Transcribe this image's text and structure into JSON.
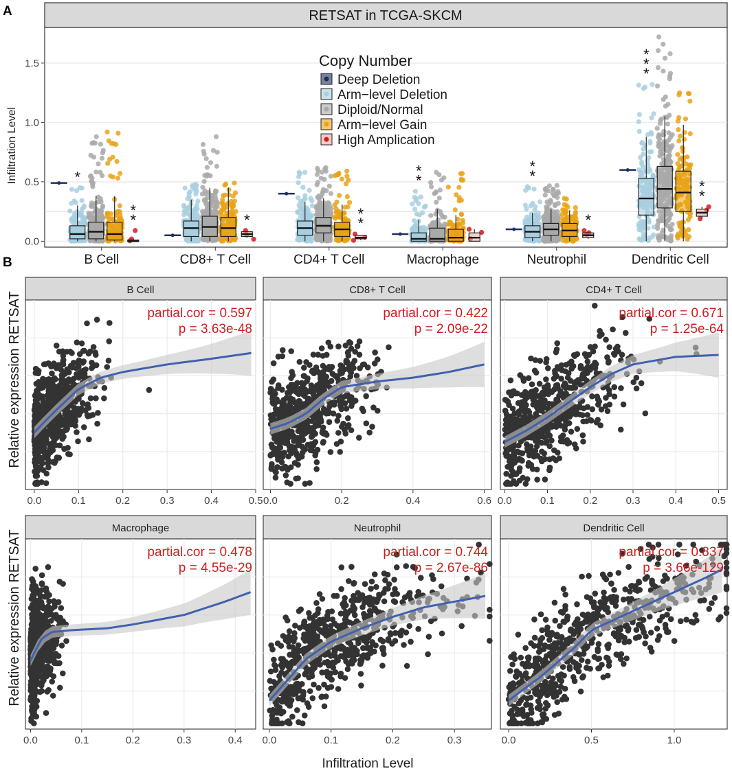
{
  "figure": {
    "panel_a_label": "A",
    "panel_b_label": "B"
  },
  "colors": {
    "deep_deletion": "#1f2f5c",
    "arm_deletion": "#a8cfe0",
    "diploid": "#a9a9a9",
    "arm_gain": "#e8a317",
    "high_amp": "#d7191c",
    "high_amp_box": "#f1a9a0",
    "strip_bg": "#d9d9d9",
    "grid": "#ebebeb",
    "points": "#333333",
    "fit_line": "#4060b0",
    "band": "#c8c8c8",
    "stat_text": "#cc1f1f"
  },
  "chart_data": [
    {
      "type": "box",
      "title": "RETSAT in TCGA-SKCM",
      "ylabel": "Infiltration Level",
      "xlabel": "",
      "ylim": [
        -0.05,
        1.8
      ],
      "yticks": [
        0.0,
        0.5,
        1.0,
        1.5
      ],
      "ytick_labels": [
        "0.0",
        "0.5",
        "1.0",
        "1.5"
      ],
      "reference_lines": [
        0.25
      ],
      "legend": {
        "title": "Copy Number",
        "placement": "top-center",
        "entries": [
          "Deep Deletion",
          "Arm−level Deletion",
          "Diploid/Normal",
          "Arm−level Gain",
          "High Amplication"
        ]
      },
      "categories": [
        "B Cell",
        "CD8+ T Cell",
        "CD4+ T Cell",
        "Macrophage",
        "Neutrophil",
        "Dendritic Cell"
      ],
      "groups": [
        {
          "name": "B Cell",
          "significance": [
            "",
            "*",
            "",
            "",
            "**"
          ],
          "max": [
            0.49,
            0.45,
            0.88,
            0.92,
            0.09
          ],
          "boxes": [
            {
              "q1": 0.49,
              "med": 0.49,
              "q3": 0.49,
              "lo": 0.49,
              "hi": 0.49
            },
            {
              "q1": 0.02,
              "med": 0.06,
              "q3": 0.13,
              "lo": 0.0,
              "hi": 0.3
            },
            {
              "q1": 0.02,
              "med": 0.08,
              "q3": 0.16,
              "lo": 0.0,
              "hi": 0.38
            },
            {
              "q1": 0.01,
              "med": 0.06,
              "q3": 0.16,
              "lo": 0.0,
              "hi": 0.38
            },
            {
              "q1": 0.0,
              "med": 0.0,
              "q3": 0.01,
              "lo": 0.0,
              "hi": 0.02
            }
          ]
        },
        {
          "name": "CD8+ T Cell",
          "significance": [
            "",
            "",
            "",
            "",
            "*"
          ],
          "max": [
            0.05,
            0.48,
            0.88,
            0.49,
            0.09
          ],
          "boxes": [
            {
              "q1": 0.05,
              "med": 0.05,
              "q3": 0.05,
              "lo": 0.05,
              "hi": 0.05
            },
            {
              "q1": 0.04,
              "med": 0.11,
              "q3": 0.17,
              "lo": 0.0,
              "hi": 0.35
            },
            {
              "q1": 0.04,
              "med": 0.12,
              "q3": 0.21,
              "lo": 0.0,
              "hi": 0.45
            },
            {
              "q1": 0.04,
              "med": 0.11,
              "q3": 0.2,
              "lo": 0.0,
              "hi": 0.45
            },
            {
              "q1": 0.04,
              "med": 0.06,
              "q3": 0.08,
              "lo": 0.03,
              "hi": 0.08
            }
          ]
        },
        {
          "name": "CD4+ T Cell",
          "significance": [
            "",
            "",
            "",
            "",
            "**"
          ],
          "max": [
            0.4,
            0.58,
            0.62,
            0.59,
            0.06
          ],
          "boxes": [
            {
              "q1": 0.4,
              "med": 0.4,
              "q3": 0.4,
              "lo": 0.4,
              "hi": 0.4
            },
            {
              "q1": 0.05,
              "med": 0.11,
              "q3": 0.17,
              "lo": 0.0,
              "hi": 0.33
            },
            {
              "q1": 0.07,
              "med": 0.13,
              "q3": 0.2,
              "lo": 0.0,
              "hi": 0.36
            },
            {
              "q1": 0.04,
              "med": 0.1,
              "q3": 0.16,
              "lo": 0.0,
              "hi": 0.31
            },
            {
              "q1": 0.02,
              "med": 0.03,
              "q3": 0.05,
              "lo": 0.01,
              "hi": 0.05
            }
          ]
        },
        {
          "name": "Macrophage",
          "significance": [
            "",
            "**",
            "",
            "",
            ""
          ],
          "max": [
            0.06,
            0.42,
            0.58,
            0.57,
            0.1
          ],
          "boxes": [
            {
              "q1": 0.06,
              "med": 0.06,
              "q3": 0.06,
              "lo": 0.06,
              "hi": 0.06
            },
            {
              "q1": 0.0,
              "med": 0.02,
              "q3": 0.07,
              "lo": 0.0,
              "hi": 0.18
            },
            {
              "q1": 0.0,
              "med": 0.02,
              "q3": 0.11,
              "lo": 0.0,
              "hi": 0.27
            },
            {
              "q1": 0.0,
              "med": 0.03,
              "q3": 0.1,
              "lo": 0.0,
              "hi": 0.22
            },
            {
              "q1": 0.0,
              "med": 0.03,
              "q3": 0.07,
              "lo": 0.0,
              "hi": 0.1
            }
          ]
        },
        {
          "name": "Neutrophil",
          "significance": [
            "",
            "**",
            "",
            "",
            "*"
          ],
          "max": [
            0.1,
            0.46,
            0.47,
            0.36,
            0.09
          ],
          "boxes": [
            {
              "q1": 0.1,
              "med": 0.1,
              "q3": 0.1,
              "lo": 0.1,
              "hi": 0.1
            },
            {
              "q1": 0.03,
              "med": 0.08,
              "q3": 0.13,
              "lo": 0.0,
              "hi": 0.24
            },
            {
              "q1": 0.05,
              "med": 0.1,
              "q3": 0.15,
              "lo": 0.0,
              "hi": 0.27
            },
            {
              "q1": 0.04,
              "med": 0.09,
              "q3": 0.15,
              "lo": 0.0,
              "hi": 0.26
            },
            {
              "q1": 0.03,
              "med": 0.05,
              "q3": 0.07,
              "lo": 0.02,
              "hi": 0.08
            }
          ]
        },
        {
          "name": "Dendritic Cell",
          "significance": [
            "",
            "***",
            "",
            "",
            "**"
          ],
          "max": [
            0.6,
            1.32,
            1.72,
            1.25,
            0.29
          ],
          "boxes": [
            {
              "q1": 0.6,
              "med": 0.6,
              "q3": 0.6,
              "lo": 0.6,
              "hi": 0.6
            },
            {
              "q1": 0.22,
              "med": 0.36,
              "q3": 0.53,
              "lo": 0.0,
              "hi": 0.88
            },
            {
              "q1": 0.28,
              "med": 0.44,
              "q3": 0.63,
              "lo": 0.0,
              "hi": 1.05
            },
            {
              "q1": 0.25,
              "med": 0.41,
              "q3": 0.59,
              "lo": 0.0,
              "hi": 0.98
            },
            {
              "q1": 0.21,
              "med": 0.24,
              "q3": 0.27,
              "lo": 0.19,
              "hi": 0.29
            }
          ]
        }
      ]
    },
    {
      "type": "scatter",
      "ylabel": "Relative expression RETSAT",
      "xlabel": "Infiltration Level",
      "panels": [
        {
          "title": "B Cell",
          "cor_label": "partial.cor = 0.597",
          "p_label": "p =  3.63e-48",
          "xlim": [
            -0.02,
            0.5
          ],
          "xticks": [
            0.0,
            0.1,
            0.2,
            0.3,
            0.4,
            0.5
          ],
          "xtick_labels": [
            "0.0",
            "0.1",
            "0.2",
            "0.3",
            "0.4",
            "0.5"
          ],
          "fit": [
            [
              0.0,
              0.3
            ],
            [
              0.02,
              0.35
            ],
            [
              0.05,
              0.42
            ],
            [
              0.1,
              0.53
            ],
            [
              0.15,
              0.59
            ],
            [
              0.2,
              0.62
            ],
            [
              0.3,
              0.66
            ],
            [
              0.4,
              0.69
            ],
            [
              0.49,
              0.72
            ]
          ],
          "point_count": 650,
          "xcluster": 0.05
        },
        {
          "title": "CD8+ T Cell",
          "cor_label": "partial.cor = 0.422",
          "p_label": "p =  2.09e-22",
          "xlim": [
            -0.02,
            0.62
          ],
          "xticks": [
            0.0,
            0.2,
            0.4,
            0.6
          ],
          "xtick_labels": [
            "0.0",
            "0.2",
            "0.4",
            "0.6"
          ],
          "fit": [
            [
              0.0,
              0.32
            ],
            [
              0.05,
              0.35
            ],
            [
              0.1,
              0.4
            ],
            [
              0.15,
              0.48
            ],
            [
              0.2,
              0.54
            ],
            [
              0.3,
              0.57
            ],
            [
              0.4,
              0.59
            ],
            [
              0.5,
              0.62
            ],
            [
              0.6,
              0.66
            ]
          ],
          "point_count": 600,
          "xcluster": 0.1
        },
        {
          "title": "CD4+ T Cell",
          "cor_label": "partial.cor = 0.671",
          "p_label": "p =  1.25e-64",
          "xlim": [
            -0.01,
            0.52
          ],
          "xticks": [
            0.0,
            0.1,
            0.2,
            0.3,
            0.4,
            0.5
          ],
          "xtick_labels": [
            "0.0",
            "0.1",
            "0.2",
            "0.3",
            "0.4",
            "0.5"
          ],
          "fit": [
            [
              0.0,
              0.25
            ],
            [
              0.05,
              0.31
            ],
            [
              0.1,
              0.38
            ],
            [
              0.15,
              0.46
            ],
            [
              0.2,
              0.54
            ],
            [
              0.25,
              0.61
            ],
            [
              0.3,
              0.66
            ],
            [
              0.4,
              0.7
            ],
            [
              0.5,
              0.71
            ]
          ],
          "point_count": 600,
          "xcluster": 0.1
        },
        {
          "title": "Macrophage",
          "cor_label": "partial.cor = 0.478",
          "p_label": "p =  4.55e-29",
          "xlim": [
            -0.01,
            0.44
          ],
          "xticks": [
            0.0,
            0.1,
            0.2,
            0.3,
            0.4
          ],
          "xtick_labels": [
            "0.0",
            "0.1",
            "0.2",
            "0.3",
            "0.4"
          ],
          "fit": [
            [
              0.0,
              0.36
            ],
            [
              0.02,
              0.47
            ],
            [
              0.04,
              0.51
            ],
            [
              0.08,
              0.52
            ],
            [
              0.15,
              0.53
            ],
            [
              0.2,
              0.55
            ],
            [
              0.3,
              0.6
            ],
            [
              0.38,
              0.67
            ],
            [
              0.43,
              0.72
            ]
          ],
          "point_count": 650,
          "xcluster": 0.02
        },
        {
          "title": "Neutrophil",
          "cor_label": "partial.cor = 0.744",
          "p_label": "p =  2.67e-86",
          "xlim": [
            -0.01,
            0.36
          ],
          "xticks": [
            0.0,
            0.1,
            0.2,
            0.3
          ],
          "xtick_labels": [
            "0.0",
            "0.1",
            "0.2",
            "0.3"
          ],
          "fit": [
            [
              0.0,
              0.15
            ],
            [
              0.03,
              0.26
            ],
            [
              0.06,
              0.37
            ],
            [
              0.1,
              0.46
            ],
            [
              0.15,
              0.53
            ],
            [
              0.2,
              0.59
            ],
            [
              0.25,
              0.64
            ],
            [
              0.3,
              0.67
            ],
            [
              0.35,
              0.7
            ]
          ],
          "point_count": 650,
          "xcluster": 0.1
        },
        {
          "title": "Dendritic Cell",
          "cor_label": "partial.cor = 0.837",
          "p_label": "p =  3.66e-129",
          "xlim": [
            -0.05,
            1.32
          ],
          "xticks": [
            0.0,
            0.5,
            1.0
          ],
          "xtick_labels": [
            "0.0",
            "0.5",
            "1.0"
          ],
          "fit": [
            [
              0.0,
              0.15
            ],
            [
              0.2,
              0.28
            ],
            [
              0.4,
              0.43
            ],
            [
              0.5,
              0.52
            ],
            [
              0.6,
              0.56
            ],
            [
              0.8,
              0.64
            ],
            [
              1.0,
              0.72
            ],
            [
              1.2,
              0.8
            ],
            [
              1.29,
              0.84
            ]
          ],
          "point_count": 650,
          "xcluster": 0.45
        }
      ]
    }
  ]
}
